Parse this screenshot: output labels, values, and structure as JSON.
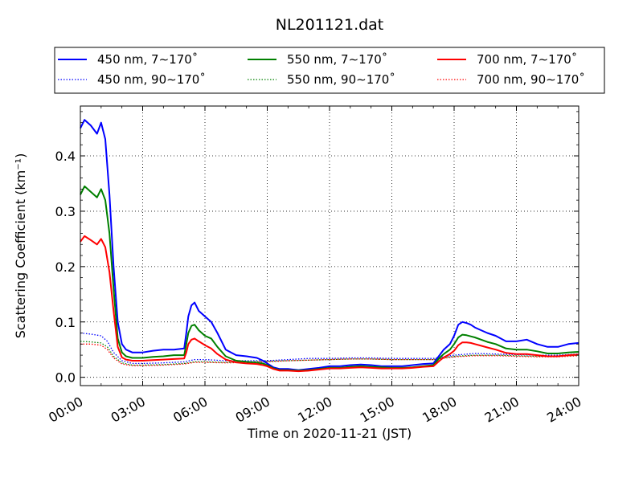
{
  "chart_data": {
    "type": "line",
    "title": "NL201121.dat",
    "xlabel": "Time on 2020-11-21 (JST)",
    "ylabel": "Scattering Coefficient (km⁻¹)",
    "xlim": [
      0,
      24
    ],
    "ylim": [
      -0.015,
      0.49
    ],
    "x_ticks": [
      0,
      3,
      6,
      9,
      12,
      15,
      18,
      21,
      24
    ],
    "x_tick_labels": [
      "00:00",
      "03:00",
      "06:00",
      "09:00",
      "12:00",
      "15:00",
      "18:00",
      "21:00",
      "24:00"
    ],
    "y_ticks": [
      0.0,
      0.1,
      0.2,
      0.3,
      0.4
    ],
    "y_tick_labels": [
      "0.0",
      "0.1",
      "0.2",
      "0.3",
      "0.4"
    ],
    "grid": true,
    "legend_position": "top",
    "series": [
      {
        "name": "450 nm, 7∼170˚",
        "color": "#0000ff",
        "style": "solid",
        "x": [
          0,
          0.2,
          0.5,
          0.8,
          1.0,
          1.2,
          1.4,
          1.6,
          1.8,
          2.0,
          2.2,
          2.5,
          3.0,
          3.5,
          4.0,
          4.5,
          5.0,
          5.1,
          5.2,
          5.35,
          5.5,
          5.7,
          6.0,
          6.3,
          6.6,
          7.0,
          7.5,
          8.0,
          8.5,
          8.8,
          9.0,
          9.3,
          9.6,
          10.0,
          10.5,
          11.0,
          11.5,
          12.0,
          12.5,
          13.0,
          13.5,
          14.0,
          14.5,
          15.0,
          15.5,
          16.0,
          16.5,
          17.0,
          17.3,
          17.5,
          17.8,
          18.0,
          18.2,
          18.4,
          18.6,
          18.8,
          19.0,
          19.3,
          19.6,
          20.0,
          20.5,
          21.0,
          21.5,
          22.0,
          22.5,
          23.0,
          23.5,
          24.0
        ],
        "y": [
          0.45,
          0.465,
          0.455,
          0.44,
          0.46,
          0.43,
          0.33,
          0.2,
          0.1,
          0.06,
          0.05,
          0.045,
          0.045,
          0.048,
          0.05,
          0.05,
          0.052,
          0.08,
          0.11,
          0.13,
          0.135,
          0.12,
          0.11,
          0.1,
          0.08,
          0.05,
          0.04,
          0.038,
          0.035,
          0.03,
          0.025,
          0.018,
          0.015,
          0.015,
          0.013,
          0.015,
          0.017,
          0.02,
          0.02,
          0.022,
          0.023,
          0.022,
          0.02,
          0.02,
          0.02,
          0.022,
          0.024,
          0.025,
          0.04,
          0.05,
          0.06,
          0.075,
          0.095,
          0.1,
          0.098,
          0.095,
          0.09,
          0.085,
          0.08,
          0.075,
          0.065,
          0.065,
          0.068,
          0.06,
          0.055,
          0.055,
          0.06,
          0.062
        ]
      },
      {
        "name": "550 nm, 7∼170˚",
        "color": "#008000",
        "style": "solid",
        "x": [
          0,
          0.2,
          0.5,
          0.8,
          1.0,
          1.2,
          1.4,
          1.6,
          1.8,
          2.0,
          2.2,
          2.5,
          3.0,
          3.5,
          4.0,
          4.5,
          5.0,
          5.1,
          5.2,
          5.35,
          5.5,
          5.7,
          6.0,
          6.3,
          6.6,
          7.0,
          7.5,
          8.0,
          8.5,
          8.8,
          9.0,
          9.3,
          9.6,
          10.0,
          10.5,
          11.0,
          11.5,
          12.0,
          12.5,
          13.0,
          13.5,
          14.0,
          14.5,
          15.0,
          15.5,
          16.0,
          16.5,
          17.0,
          17.3,
          17.5,
          17.8,
          18.0,
          18.2,
          18.4,
          18.6,
          18.8,
          19.0,
          19.3,
          19.6,
          20.0,
          20.5,
          21.0,
          21.5,
          22.0,
          22.5,
          23.0,
          23.5,
          24.0
        ],
        "y": [
          0.33,
          0.345,
          0.335,
          0.325,
          0.34,
          0.32,
          0.26,
          0.16,
          0.07,
          0.045,
          0.038,
          0.035,
          0.035,
          0.037,
          0.038,
          0.04,
          0.04,
          0.06,
          0.08,
          0.093,
          0.095,
          0.085,
          0.075,
          0.07,
          0.055,
          0.038,
          0.03,
          0.028,
          0.026,
          0.025,
          0.022,
          0.016,
          0.013,
          0.013,
          0.012,
          0.013,
          0.015,
          0.017,
          0.017,
          0.019,
          0.02,
          0.019,
          0.018,
          0.017,
          0.017,
          0.018,
          0.02,
          0.022,
          0.035,
          0.042,
          0.05,
          0.06,
          0.072,
          0.077,
          0.076,
          0.074,
          0.072,
          0.068,
          0.064,
          0.06,
          0.052,
          0.05,
          0.05,
          0.047,
          0.043,
          0.043,
          0.045,
          0.046
        ]
      },
      {
        "name": "700 nm, 7∼170˚",
        "color": "#ff0000",
        "style": "solid",
        "x": [
          0,
          0.2,
          0.5,
          0.8,
          1.0,
          1.2,
          1.4,
          1.6,
          1.8,
          2.0,
          2.2,
          2.5,
          3.0,
          3.5,
          4.0,
          4.5,
          5.0,
          5.1,
          5.2,
          5.35,
          5.5,
          5.7,
          6.0,
          6.3,
          6.6,
          7.0,
          7.5,
          8.0,
          8.5,
          8.8,
          9.0,
          9.3,
          9.6,
          10.0,
          10.5,
          11.0,
          11.5,
          12.0,
          12.5,
          13.0,
          13.5,
          14.0,
          14.5,
          15.0,
          15.5,
          16.0,
          16.5,
          17.0,
          17.3,
          17.5,
          17.8,
          18.0,
          18.2,
          18.4,
          18.6,
          18.8,
          19.0,
          19.3,
          19.6,
          20.0,
          20.5,
          21.0,
          21.5,
          22.0,
          22.5,
          23.0,
          23.5,
          24.0
        ],
        "y": [
          0.245,
          0.255,
          0.248,
          0.24,
          0.25,
          0.235,
          0.19,
          0.12,
          0.055,
          0.036,
          0.032,
          0.03,
          0.03,
          0.031,
          0.032,
          0.033,
          0.034,
          0.045,
          0.06,
          0.068,
          0.07,
          0.065,
          0.058,
          0.052,
          0.042,
          0.032,
          0.027,
          0.025,
          0.024,
          0.022,
          0.02,
          0.015,
          0.012,
          0.012,
          0.011,
          0.012,
          0.014,
          0.016,
          0.016,
          0.017,
          0.018,
          0.017,
          0.016,
          0.016,
          0.016,
          0.017,
          0.019,
          0.02,
          0.03,
          0.036,
          0.042,
          0.048,
          0.058,
          0.063,
          0.063,
          0.062,
          0.06,
          0.057,
          0.054,
          0.05,
          0.044,
          0.042,
          0.042,
          0.04,
          0.038,
          0.038,
          0.04,
          0.041
        ]
      },
      {
        "name": "450 nm, 90∼170˚",
        "color": "#0000ff",
        "style": "dotted",
        "x": [
          0,
          0.5,
          1.0,
          1.3,
          1.6,
          2.0,
          2.5,
          3.0,
          4.0,
          5.0,
          5.5,
          6.0,
          7.0,
          8.0,
          9.0,
          10.0,
          11.0,
          12.0,
          13.0,
          14.0,
          15.0,
          16.0,
          17.0,
          18.0,
          19.0,
          20.0,
          21.0,
          22.0,
          23.0,
          24.0
        ],
        "y": [
          0.08,
          0.078,
          0.075,
          0.065,
          0.045,
          0.03,
          0.025,
          0.025,
          0.026,
          0.028,
          0.032,
          0.032,
          0.03,
          0.03,
          0.03,
          0.032,
          0.034,
          0.034,
          0.035,
          0.035,
          0.034,
          0.034,
          0.034,
          0.04,
          0.043,
          0.042,
          0.041,
          0.04,
          0.04,
          0.042
        ]
      },
      {
        "name": "550 nm, 90∼170˚",
        "color": "#008000",
        "style": "dotted",
        "x": [
          0,
          0.5,
          1.0,
          1.3,
          1.6,
          2.0,
          2.5,
          3.0,
          4.0,
          5.0,
          5.5,
          6.0,
          7.0,
          8.0,
          9.0,
          10.0,
          11.0,
          12.0,
          13.0,
          14.0,
          15.0,
          16.0,
          17.0,
          18.0,
          19.0,
          20.0,
          21.0,
          22.0,
          23.0,
          24.0
        ],
        "y": [
          0.065,
          0.064,
          0.062,
          0.055,
          0.038,
          0.026,
          0.022,
          0.022,
          0.023,
          0.025,
          0.028,
          0.028,
          0.027,
          0.028,
          0.029,
          0.03,
          0.031,
          0.032,
          0.033,
          0.033,
          0.032,
          0.032,
          0.032,
          0.038,
          0.04,
          0.04,
          0.039,
          0.038,
          0.038,
          0.04
        ]
      },
      {
        "name": "700 nm, 90∼170˚",
        "color": "#ff0000",
        "style": "dotted",
        "x": [
          0,
          0.5,
          1.0,
          1.3,
          1.6,
          2.0,
          2.5,
          3.0,
          4.0,
          5.0,
          5.5,
          6.0,
          7.0,
          8.0,
          9.0,
          10.0,
          11.0,
          12.0,
          13.0,
          14.0,
          15.0,
          16.0,
          17.0,
          18.0,
          19.0,
          20.0,
          21.0,
          22.0,
          23.0,
          24.0
        ],
        "y": [
          0.06,
          0.06,
          0.058,
          0.05,
          0.035,
          0.024,
          0.021,
          0.021,
          0.022,
          0.024,
          0.027,
          0.027,
          0.026,
          0.027,
          0.028,
          0.03,
          0.031,
          0.032,
          0.033,
          0.033,
          0.032,
          0.032,
          0.032,
          0.037,
          0.039,
          0.039,
          0.038,
          0.037,
          0.037,
          0.039
        ]
      }
    ]
  }
}
